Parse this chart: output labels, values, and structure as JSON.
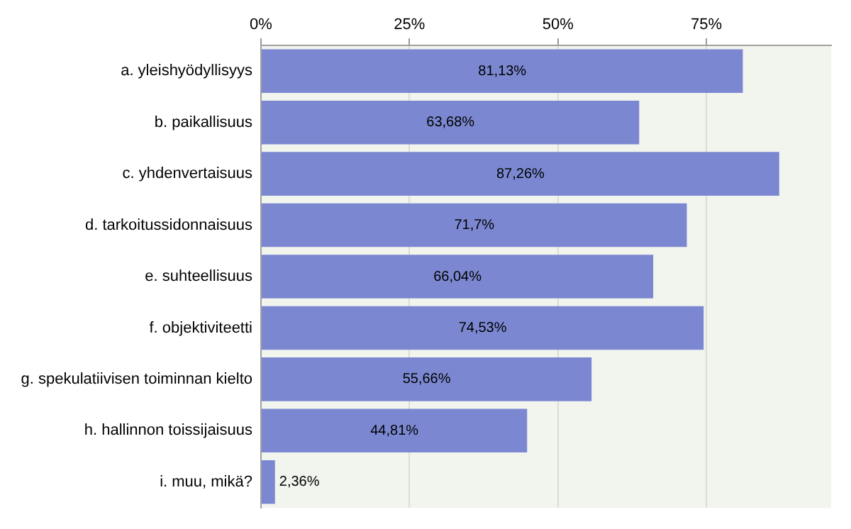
{
  "chart_data": {
    "type": "bar",
    "orientation": "horizontal",
    "categories": [
      "a. yleishyödyllisyys",
      "b. paikallisuus",
      "c. yhdenvertaisuus",
      "d. tarkoitussidonnaisuus",
      "e. suhteellisuus",
      "f. objektiviteetti",
      "g. spekulatiivisen toiminnan kielto",
      "h. hallinnon toissijaisuus",
      "i. muu, mikä?"
    ],
    "values": [
      81.13,
      63.68,
      87.26,
      71.7,
      66.04,
      74.53,
      55.66,
      44.81,
      2.36
    ],
    "value_labels": [
      "81,13%",
      "63,68%",
      "87,26%",
      "71,7%",
      "66,04%",
      "74,53%",
      "55,66%",
      "44,81%",
      "2,36%"
    ],
    "color": "#7b88d1",
    "xlim": [
      0,
      96
    ],
    "xticks": [
      {
        "value": 0,
        "label": "0%"
      },
      {
        "value": 25,
        "label": "25%"
      },
      {
        "value": 50,
        "label": "50%"
      },
      {
        "value": 75,
        "label": "75%"
      }
    ],
    "grid": "x",
    "legend": false
  }
}
